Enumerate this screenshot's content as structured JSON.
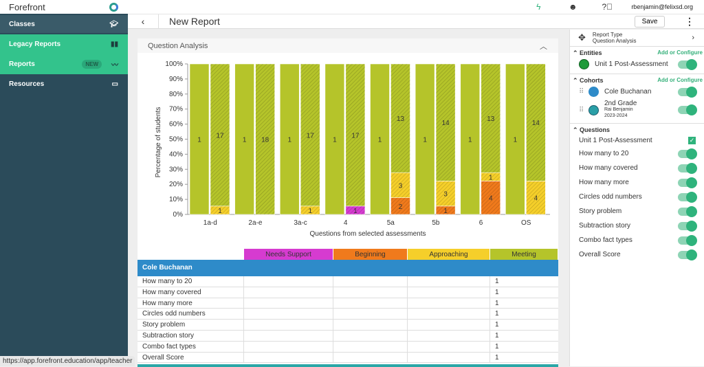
{
  "app": {
    "brand": "Forefront",
    "url": "https://app.forefront.education/app/teacher"
  },
  "sidebar": {
    "items": [
      {
        "label": "Classes",
        "icon": "graduation-cap-icon"
      },
      {
        "label": "Legacy Reports",
        "icon": "bar-chart-icon"
      },
      {
        "label": "Reports",
        "badge": "NEW",
        "icon": "trend-icon"
      },
      {
        "label": "Resources",
        "icon": "folder-icon"
      }
    ]
  },
  "topbar": {
    "email": "rbenjamin@felixsd.org"
  },
  "header": {
    "title": "New Report",
    "save": "Save"
  },
  "card": {
    "title": "Question Analysis"
  },
  "colors": {
    "needs_support": "#d63bd0",
    "beginning": "#f07a1c",
    "approaching": "#f5cf2a",
    "meeting": "#b5c42a",
    "cohort_header": "#2e8bc9"
  },
  "legend": [
    "Needs Support",
    "Beginning",
    "Approaching",
    "Meeting"
  ],
  "chart_data": {
    "type": "bar",
    "stacked": true,
    "percent": true,
    "xlabel": "Questions from selected assessments",
    "ylabel": "Percentage of students",
    "ylim": [
      0,
      100
    ],
    "yticks": [
      "0%",
      "10%",
      "20%",
      "30%",
      "40%",
      "50%",
      "60%",
      "70%",
      "80%",
      "90%",
      "100%"
    ],
    "categories": [
      "1a-d",
      "2a-e",
      "3a-c",
      "4",
      "5a",
      "5b",
      "6",
      "OS"
    ],
    "cohorts": [
      {
        "name": "Cole Buchanan",
        "needs_support": [
          0,
          0,
          0,
          0,
          0,
          0,
          0,
          0
        ],
        "beginning": [
          0,
          0,
          0,
          0,
          0,
          0,
          0,
          0
        ],
        "approaching": [
          0,
          0,
          0,
          0,
          0,
          0,
          0,
          0
        ],
        "meeting": [
          1,
          1,
          1,
          1,
          1,
          1,
          1,
          1
        ]
      },
      {
        "name": "2nd Grade",
        "hatched": true,
        "needs_support": [
          0,
          0,
          0,
          1,
          0,
          0,
          0,
          0
        ],
        "beginning": [
          0,
          0,
          0,
          0,
          2,
          1,
          4,
          0
        ],
        "approaching": [
          1,
          0,
          1,
          0,
          3,
          3,
          1,
          4
        ],
        "meeting": [
          17,
          18,
          17,
          17,
          13,
          14,
          13,
          14
        ]
      }
    ]
  },
  "table": {
    "cohort": "Cole Buchanan",
    "rows": [
      {
        "q": "How many to 20",
        "meeting": "1"
      },
      {
        "q": "How many covered",
        "meeting": "1"
      },
      {
        "q": "How many more",
        "meeting": "1"
      },
      {
        "q": "Circles odd numbers",
        "meeting": "1"
      },
      {
        "q": "Story problem",
        "meeting": "1"
      },
      {
        "q": "Subtraction story",
        "meeting": "1"
      },
      {
        "q": "Combo fact types",
        "meeting": "1"
      },
      {
        "q": "Overall Score",
        "meeting": "1"
      }
    ]
  },
  "panel": {
    "report_type_label": "Report Type",
    "report_type": "Question Analysis",
    "entities_title": "Entities",
    "add": "Add or Configure",
    "entity": "Unit 1 Post-Assessment",
    "cohorts_title": "Cohorts",
    "cohort1": "Cole Buchanan",
    "cohort2": "2nd Grade",
    "cohort2_teacher": "Rai Benjamin",
    "cohort2_year": "2023-2024",
    "questions_title": "Questions",
    "assessment": "Unit 1 Post-Assessment",
    "questions": [
      "How many to 20",
      "How many covered",
      "How many more",
      "Circles odd numbers",
      "Story problem",
      "Subtraction story",
      "Combo fact types",
      "Overall Score"
    ]
  }
}
